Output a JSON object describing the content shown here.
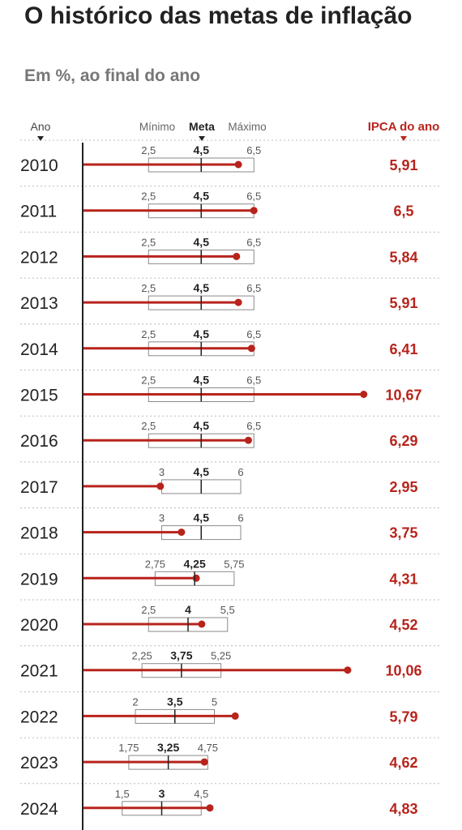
{
  "title": "O histórico das metas de inflação",
  "subtitle": "Em %, ao final do ano",
  "chart_data": {
    "type": "bar",
    "title": "O histórico das metas de inflação",
    "subtitle": "Em %, ao final do ano",
    "header": {
      "year": "Ano",
      "min": "Mínimo",
      "target": "Meta",
      "max": "Máximo",
      "ipca": "IPCA do ano"
    },
    "rows": [
      {
        "year": "2010",
        "min": "2,5",
        "meta": "4,5",
        "max": "6,5",
        "ipca": "5,91"
      },
      {
        "year": "2011",
        "min": "2,5",
        "meta": "4,5",
        "max": "6,5",
        "ipca": "6,5"
      },
      {
        "year": "2012",
        "min": "2,5",
        "meta": "4,5",
        "max": "6,5",
        "ipca": "5,84"
      },
      {
        "year": "2013",
        "min": "2,5",
        "meta": "4,5",
        "max": "6,5",
        "ipca": "5,91"
      },
      {
        "year": "2014",
        "min": "2,5",
        "meta": "4,5",
        "max": "6,5",
        "ipca": "6,41"
      },
      {
        "year": "2015",
        "min": "2,5",
        "meta": "4,5",
        "max": "6,5",
        "ipca": "10,67"
      },
      {
        "year": "2016",
        "min": "2,5",
        "meta": "4,5",
        "max": "6,5",
        "ipca": "6,29"
      },
      {
        "year": "2017",
        "min": "3",
        "meta": "4,5",
        "max": "6",
        "ipca": "2,95"
      },
      {
        "year": "2018",
        "min": "3",
        "meta": "4,5",
        "max": "6",
        "ipca": "3,75"
      },
      {
        "year": "2019",
        "min": "2,75",
        "meta": "4,25",
        "max": "5,75",
        "ipca": "4,31"
      },
      {
        "year": "2020",
        "min": "2,5",
        "meta": "4",
        "max": "5,5",
        "ipca": "4,52"
      },
      {
        "year": "2021",
        "min": "2,25",
        "meta": "3,75",
        "max": "5,25",
        "ipca": "10,06"
      },
      {
        "year": "2022",
        "min": "2",
        "meta": "3,5",
        "max": "5",
        "ipca": "5,79"
      },
      {
        "year": "2023",
        "min": "1,75",
        "meta": "3,25",
        "max": "4,75",
        "ipca": "4,62"
      },
      {
        "year": "2024",
        "min": "1,5",
        "meta": "3",
        "max": "4,5",
        "ipca": "4,83"
      }
    ],
    "colors": {
      "ipca": "#b8231c",
      "target_box": "#8a8a8a",
      "axis": "#222222",
      "separator": "#bbbbbb",
      "text": "#222222",
      "muted": "#555555"
    }
  }
}
